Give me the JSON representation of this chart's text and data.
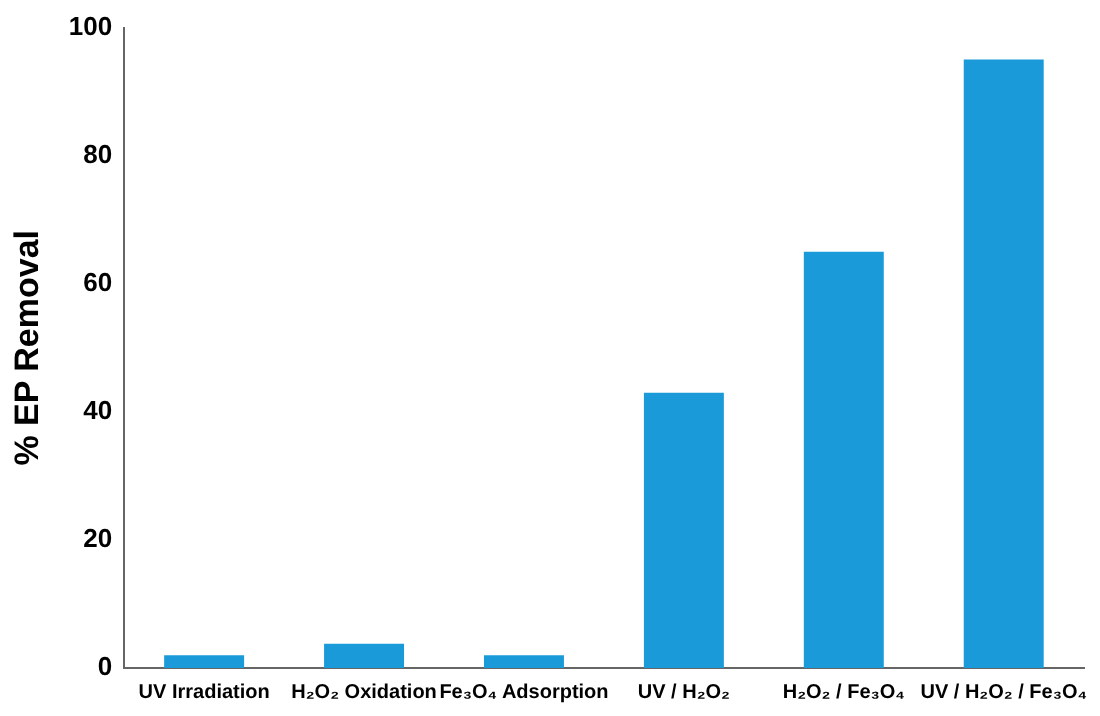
{
  "chart_data": {
    "type": "bar",
    "ylabel": "% EP Removal",
    "categories": [
      "UV Irradiation",
      "H₂O₂ Oxidation",
      "Fe₃O₄ Adsorption",
      "UV / H₂O₂",
      "H₂O₂ / Fe₃O₄",
      "UV / H₂O₂ / Fe₃O₄"
    ],
    "values": [
      2,
      3.8,
      2,
      43,
      65,
      95
    ],
    "color": "#1a9ad8",
    "ylim": [
      0,
      100
    ],
    "yticks": [
      0,
      20,
      40,
      60,
      80,
      100
    ],
    "grid": false,
    "legend": false
  }
}
